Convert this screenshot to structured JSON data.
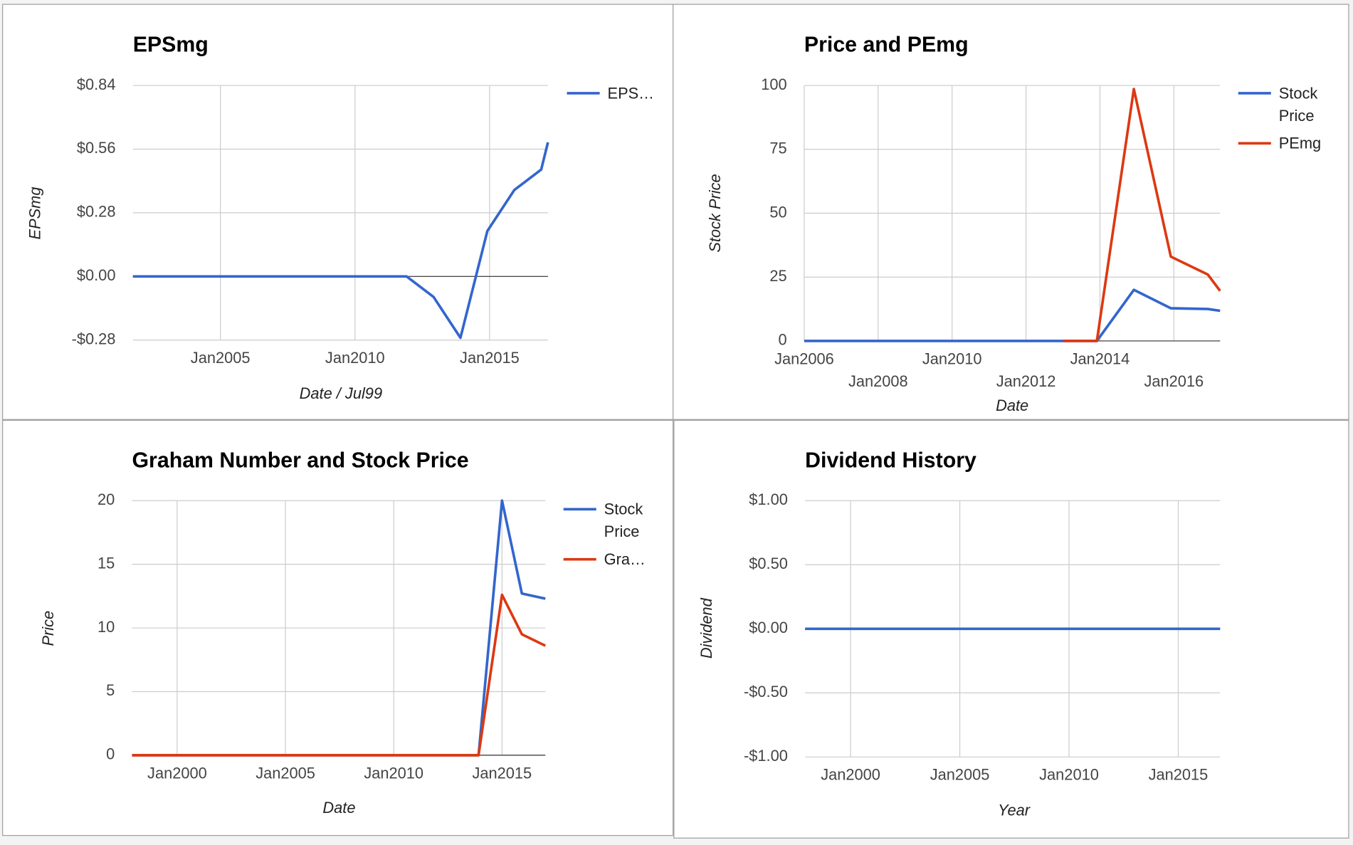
{
  "chart_data": [
    {
      "type": "line",
      "title": "EPSmg",
      "xlabel": "Date / Jul99",
      "ylabel": "EPSmg",
      "legend": "right",
      "grid": true,
      "xlim": [
        "2001-10",
        "2017-03"
      ],
      "xticks": [
        {
          "value": "2005-01",
          "label": "Jan2005"
        },
        {
          "value": "2010-01",
          "label": "Jan2010"
        },
        {
          "value": "2015-01",
          "label": "Jan2015"
        }
      ],
      "ylim": [
        -0.28,
        0.84
      ],
      "yticks": [
        {
          "value": -0.28,
          "label": "-$0.28"
        },
        {
          "value": 0,
          "label": "$0.00"
        },
        {
          "value": 0.28,
          "label": "$0.28"
        },
        {
          "value": 0.56,
          "label": "$0.56"
        },
        {
          "value": 0.84,
          "label": "$0.84"
        }
      ],
      "series": [
        {
          "name": "EPS…",
          "color": "#3366cc",
          "x": [
            "2001-10",
            "2011-12",
            "2012-12",
            "2013-12",
            "2014-12",
            "2015-12",
            "2016-12",
            "2017-03"
          ],
          "values": [
            0,
            0,
            -0.09,
            -0.27,
            0.2,
            0.38,
            0.47,
            0.59
          ]
        }
      ]
    },
    {
      "type": "line",
      "title": "Price and PEmg",
      "xlabel": "Date",
      "ylabel": "Stock Price",
      "legend": "right",
      "grid": true,
      "xlim": [
        "2006-01",
        "2017-04"
      ],
      "xticks": [
        {
          "value": "2006-01",
          "label": "Jan2006"
        },
        {
          "value": "2008-01",
          "label": "Jan2008"
        },
        {
          "value": "2010-01",
          "label": "Jan2010"
        },
        {
          "value": "2012-01",
          "label": "Jan2012"
        },
        {
          "value": "2014-01",
          "label": "Jan2014"
        },
        {
          "value": "2016-01",
          "label": "Jan2016"
        }
      ],
      "ylim": [
        0,
        100
      ],
      "yticks": [
        0,
        25,
        50,
        75,
        100
      ],
      "series": [
        {
          "name": "Stock Price",
          "color": "#3366cc",
          "x": [
            "2006-01",
            "2013-12",
            "2014-12",
            "2015-12",
            "2016-12",
            "2017-04"
          ],
          "values": [
            0,
            0,
            20,
            12.8,
            12.5,
            11.8
          ]
        },
        {
          "name": "PEmg",
          "color": "#dc3912",
          "x": [
            "2013-01",
            "2013-12",
            "2014-12",
            "2015-12",
            "2016-12",
            "2017-04"
          ],
          "values": [
            0,
            0,
            98.6,
            33,
            26,
            19.6
          ]
        }
      ]
    },
    {
      "type": "line",
      "title": "Graham Number and Stock Price",
      "xlabel": "Date",
      "ylabel": "Price",
      "legend": "right",
      "grid": true,
      "xlim": [
        "1997-12",
        "2017-01"
      ],
      "xticks": [
        {
          "value": "2000-01",
          "label": "Jan2000"
        },
        {
          "value": "2005-01",
          "label": "Jan2005"
        },
        {
          "value": "2010-01",
          "label": "Jan2010"
        },
        {
          "value": "2015-01",
          "label": "Jan2015"
        }
      ],
      "ylim": [
        0,
        20
      ],
      "yticks": [
        0,
        5,
        10,
        15,
        20
      ],
      "series": [
        {
          "name": "Stock Price",
          "color": "#3366cc",
          "x": [
            "1997-12",
            "2013-12",
            "2015-01",
            "2015-12",
            "2017-01"
          ],
          "values": [
            0,
            0,
            20,
            12.7,
            12.3
          ]
        },
        {
          "name": "Gra…",
          "color": "#dc3912",
          "x": [
            "1997-12",
            "2013-12",
            "2015-01",
            "2015-12",
            "2017-01"
          ],
          "values": [
            0,
            0,
            12.6,
            9.5,
            8.6
          ]
        }
      ]
    },
    {
      "type": "line",
      "title": "Dividend History",
      "xlabel": "Year",
      "ylabel": "Dividend",
      "grid": true,
      "color": "#3366cc",
      "xlim": [
        "1997-12",
        "2016-12"
      ],
      "xticks": [
        {
          "value": "2000-01",
          "label": "Jan2000"
        },
        {
          "value": "2005-01",
          "label": "Jan2005"
        },
        {
          "value": "2010-01",
          "label": "Jan2010"
        },
        {
          "value": "2015-01",
          "label": "Jan2015"
        }
      ],
      "ylim": [
        -1,
        1
      ],
      "yticks": [
        {
          "value": -1,
          "label": "-$1.00"
        },
        {
          "value": -0.5,
          "label": "-$0.50"
        },
        {
          "value": 0,
          "label": "$0.00"
        },
        {
          "value": 0.5,
          "label": "$0.50"
        },
        {
          "value": 1,
          "label": "$1.00"
        }
      ],
      "x": [
        "1997-12",
        "2016-12"
      ],
      "values": [
        0,
        0
      ]
    }
  ]
}
